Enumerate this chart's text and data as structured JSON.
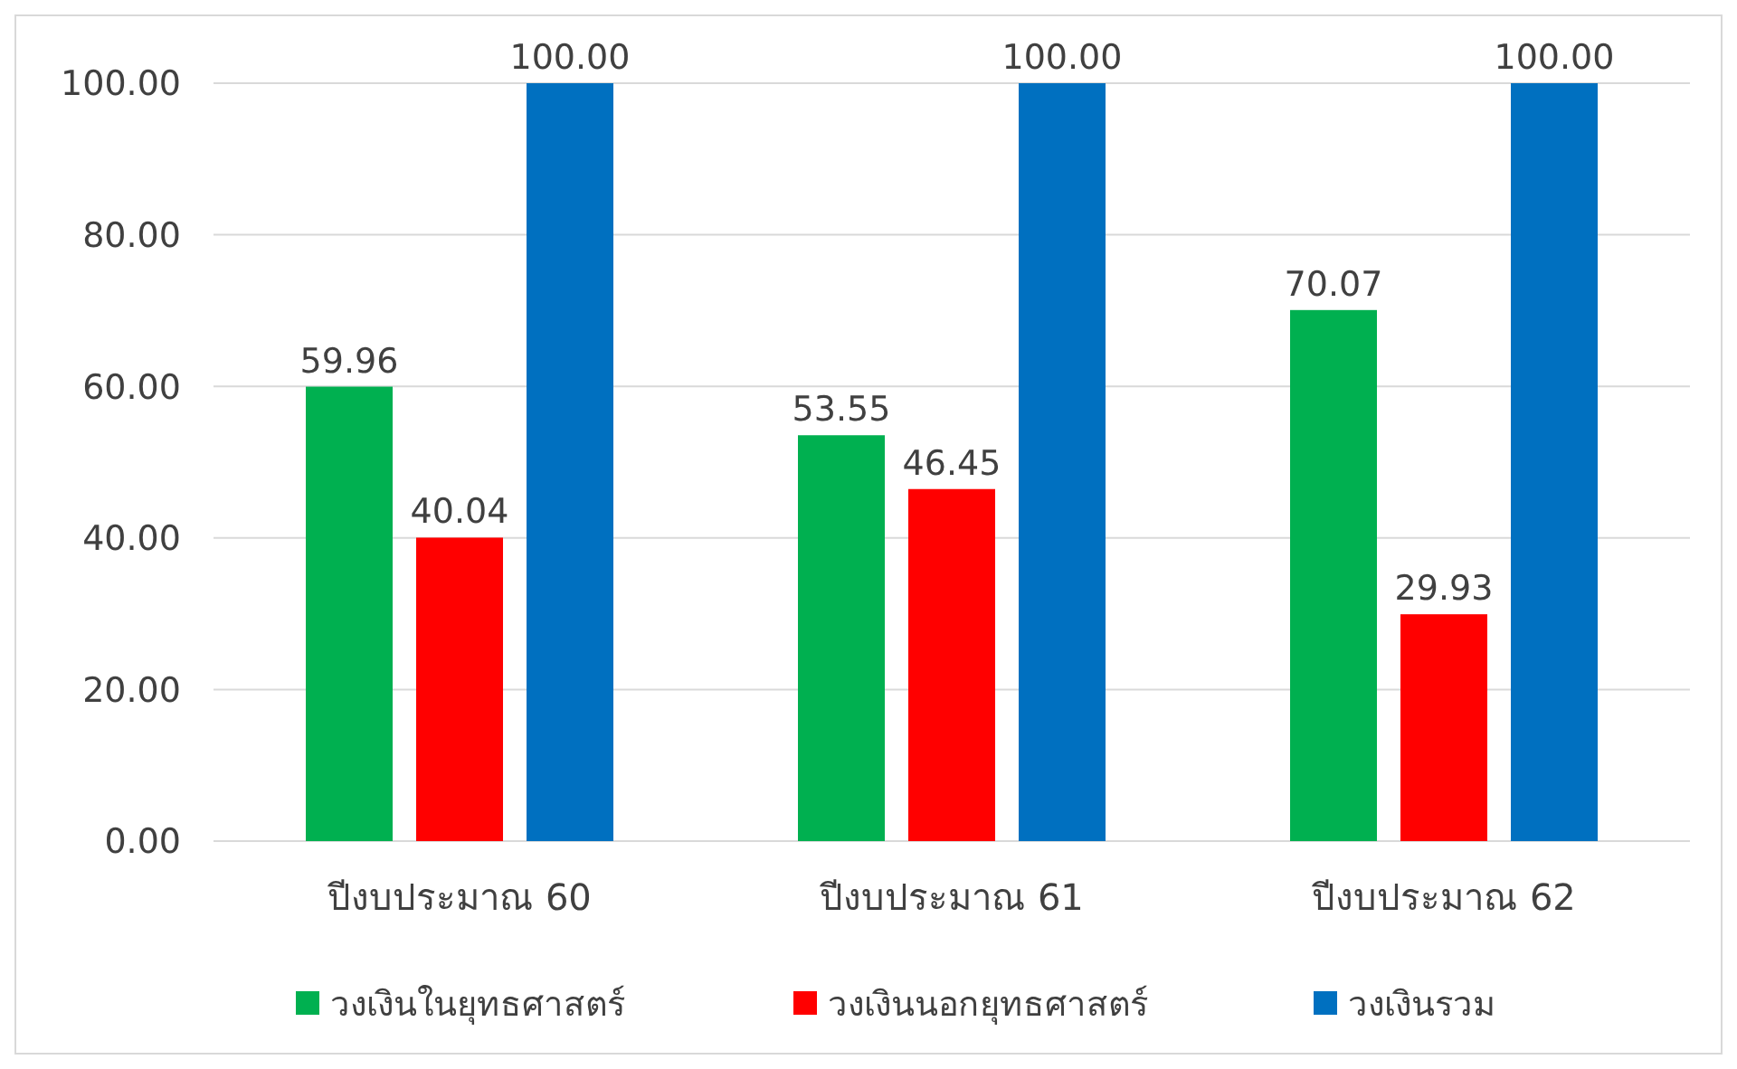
{
  "chart_data": {
    "type": "bar",
    "categories": [
      "ปีงบประมาณ 60",
      "ปีงบประมาณ 61",
      "ปีงบประมาณ 62"
    ],
    "series": [
      {
        "name": "วงเงินในยุทธศาสตร์",
        "color": "#00b050",
        "values": [
          59.96,
          53.55,
          70.07
        ],
        "value_labels": [
          "59.96",
          "53.55",
          "70.07"
        ]
      },
      {
        "name": "วงเงินนอกยุทธศาสตร์",
        "color": "#ff0000",
        "values": [
          40.04,
          46.45,
          29.93
        ],
        "value_labels": [
          "40.04",
          "46.45",
          "29.93"
        ]
      },
      {
        "name": "วงเงินรวม",
        "color": "#0070c0",
        "values": [
          100,
          100,
          100
        ],
        "value_labels": [
          "100.00",
          "100.00",
          "100.00"
        ]
      }
    ],
    "ylim": [
      0,
      100
    ],
    "yticks": [
      {
        "value": 0,
        "label": "0.00"
      },
      {
        "value": 20,
        "label": "20.00"
      },
      {
        "value": 40,
        "label": "40.00"
      },
      {
        "value": 60,
        "label": "60.00"
      },
      {
        "value": 80,
        "label": "80.00"
      },
      {
        "value": 100,
        "label": "100.00"
      }
    ],
    "grid": "y",
    "legend": "bottom"
  }
}
